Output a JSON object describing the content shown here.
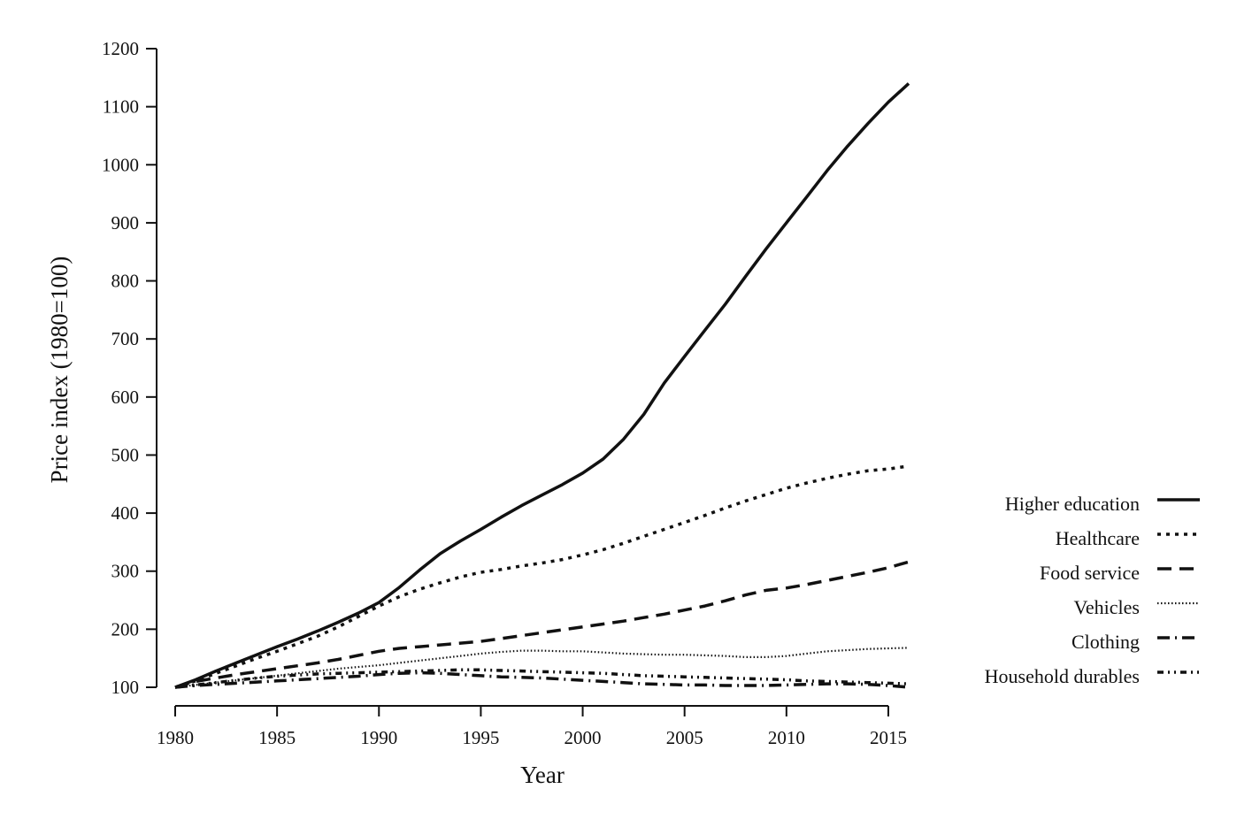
{
  "chart_data": {
    "type": "line",
    "xlabel": "Year",
    "ylabel": "Price index (1980=100)",
    "xlim": [
      1980,
      2016
    ],
    "ylim": [
      100,
      1200
    ],
    "x_ticks": [
      1980,
      1985,
      1990,
      1995,
      2000,
      2005,
      2010,
      2015
    ],
    "y_ticks": [
      100,
      200,
      300,
      400,
      500,
      600,
      700,
      800,
      900,
      1000,
      1100,
      1200
    ],
    "grid": false,
    "legend_position": "right",
    "x": [
      1980,
      1981,
      1982,
      1983,
      1984,
      1985,
      1986,
      1987,
      1988,
      1989,
      1990,
      1991,
      1992,
      1993,
      1994,
      1995,
      1996,
      1997,
      1998,
      1999,
      2000,
      2001,
      2002,
      2003,
      2004,
      2005,
      2006,
      2007,
      2008,
      2009,
      2010,
      2011,
      2012,
      2013,
      2014,
      2015,
      2016
    ],
    "series": [
      {
        "name": "Higher education",
        "style": "solid",
        "values": [
          100,
          113,
          128,
          142,
          156,
          170,
          183,
          197,
          212,
          228,
          246,
          272,
          302,
          330,
          352,
          372,
          393,
          413,
          431,
          449,
          469,
          493,
          527,
          570,
          624,
          670,
          715,
          760,
          808,
          855,
          900,
          945,
          990,
          1032,
          1071,
          1108,
          1140
        ]
      },
      {
        "name": "Healthcare",
        "style": "dotted",
        "values": [
          100,
          111,
          124,
          137,
          150,
          162,
          175,
          188,
          204,
          222,
          240,
          256,
          269,
          280,
          290,
          298,
          303,
          309,
          314,
          320,
          328,
          337,
          348,
          360,
          372,
          384,
          396,
          409,
          421,
          432,
          443,
          452,
          460,
          467,
          473,
          476,
          481
        ]
      },
      {
        "name": "Food service",
        "style": "dashed",
        "values": [
          100,
          110,
          116,
          122,
          127,
          132,
          137,
          142,
          148,
          155,
          162,
          167,
          170,
          173,
          176,
          179,
          184,
          189,
          194,
          199,
          204,
          209,
          214,
          220,
          226,
          233,
          240,
          249,
          259,
          267,
          271,
          277,
          284,
          291,
          298,
          306,
          316
        ]
      },
      {
        "name": "Vehicles",
        "style": "fine-dotted",
        "values": [
          100,
          104,
          108,
          112,
          116,
          120,
          124,
          128,
          132,
          135,
          138,
          142,
          146,
          150,
          154,
          158,
          161,
          163,
          163,
          162,
          162,
          160,
          158,
          157,
          156,
          156,
          155,
          154,
          152,
          152,
          154,
          158,
          162,
          164,
          166,
          167,
          168
        ]
      },
      {
        "name": "Clothing",
        "style": "dash-dot",
        "values": [
          100,
          103,
          105,
          107,
          109,
          111,
          113,
          115,
          117,
          119,
          122,
          124,
          125,
          124,
          122,
          120,
          118,
          117,
          116,
          114,
          112,
          110,
          108,
          106,
          105,
          104,
          104,
          103,
          103,
          103,
          104,
          105,
          106,
          106,
          105,
          103,
          100
        ]
      },
      {
        "name": "Household durables",
        "style": "dash-dot-dot",
        "values": [
          100,
          104,
          108,
          112,
          116,
          119,
          121,
          123,
          124,
          125,
          126,
          127,
          128,
          129,
          130,
          130,
          129,
          128,
          127,
          126,
          125,
          124,
          122,
          120,
          119,
          118,
          117,
          116,
          115,
          114,
          113,
          111,
          110,
          109,
          108,
          107,
          106
        ]
      }
    ]
  }
}
